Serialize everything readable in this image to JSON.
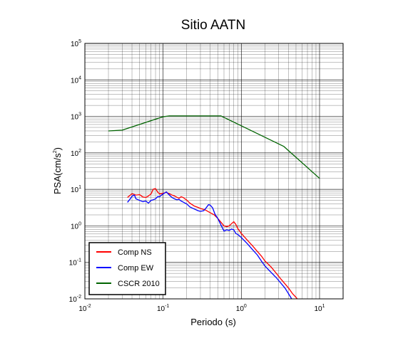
{
  "chart_data": {
    "type": "line",
    "title": "Sitio AATN",
    "xlabel": "Periodo (s)",
    "ylabel": {
      "base": "PSA(cm/s",
      "sup": "2",
      "end": ")"
    },
    "x_scale": "log",
    "y_scale": "log",
    "xlim": [
      0.01,
      20
    ],
    "ylim": [
      0.01,
      100000
    ],
    "grid": true,
    "legend_position": "bottom-left",
    "x_ticks": [
      {
        "base": "10",
        "exp": "-2",
        "value": 0.01
      },
      {
        "base": "10",
        "exp": "-1",
        "value": 0.1
      },
      {
        "base": "10",
        "exp": "0",
        "value": 1
      },
      {
        "base": "10",
        "exp": "1",
        "value": 10
      }
    ],
    "y_ticks": [
      {
        "base": "10",
        "exp": "-2",
        "value": 0.01
      },
      {
        "base": "10",
        "exp": "-1",
        "value": 0.1
      },
      {
        "base": "10",
        "exp": "0",
        "value": 1
      },
      {
        "base": "10",
        "exp": "1",
        "value": 10
      },
      {
        "base": "10",
        "exp": "2",
        "value": 100
      },
      {
        "base": "10",
        "exp": "3",
        "value": 1000
      },
      {
        "base": "10",
        "exp": "4",
        "value": 10000
      },
      {
        "base": "10",
        "exp": "5",
        "value": 100000
      }
    ],
    "series": [
      {
        "name": "Comp NS",
        "color": "#ff0000",
        "points": [
          [
            0.035,
            6.0
          ],
          [
            0.04,
            7.6
          ],
          [
            0.045,
            7.0
          ],
          [
            0.05,
            7.2
          ],
          [
            0.055,
            6.2
          ],
          [
            0.06,
            6.0
          ],
          [
            0.065,
            6.6
          ],
          [
            0.07,
            7.5
          ],
          [
            0.075,
            10.2
          ],
          [
            0.08,
            10.5
          ],
          [
            0.085,
            8.5
          ],
          [
            0.09,
            7.5
          ],
          [
            0.1,
            7.8
          ],
          [
            0.11,
            8.3
          ],
          [
            0.12,
            7.6
          ],
          [
            0.13,
            7.0
          ],
          [
            0.14,
            6.6
          ],
          [
            0.15,
            6.1
          ],
          [
            0.16,
            5.7
          ],
          [
            0.17,
            6.3
          ],
          [
            0.18,
            6.0
          ],
          [
            0.2,
            5.1
          ],
          [
            0.22,
            4.2
          ],
          [
            0.25,
            3.5
          ],
          [
            0.28,
            3.2
          ],
          [
            0.3,
            3.0
          ],
          [
            0.35,
            2.7
          ],
          [
            0.4,
            2.3
          ],
          [
            0.45,
            2.0
          ],
          [
            0.5,
            1.6
          ],
          [
            0.55,
            1.25
          ],
          [
            0.6,
            1.0
          ],
          [
            0.65,
            0.95
          ],
          [
            0.7,
            1.0
          ],
          [
            0.75,
            1.15
          ],
          [
            0.8,
            1.3
          ],
          [
            0.85,
            1.1
          ],
          [
            0.9,
            0.85
          ],
          [
            1.0,
            0.62
          ],
          [
            1.2,
            0.4
          ],
          [
            1.4,
            0.28
          ],
          [
            1.6,
            0.2
          ],
          [
            1.8,
            0.15
          ],
          [
            2.0,
            0.11
          ],
          [
            2.4,
            0.075
          ],
          [
            2.8,
            0.05
          ],
          [
            3.2,
            0.035
          ],
          [
            3.6,
            0.026
          ],
          [
            4.0,
            0.02
          ],
          [
            4.5,
            0.014
          ],
          [
            5.0,
            0.011
          ],
          [
            5.2,
            0.01
          ]
        ]
      },
      {
        "name": "Comp EW",
        "color": "#0000ff",
        "points": [
          [
            0.035,
            4.4
          ],
          [
            0.038,
            5.5
          ],
          [
            0.04,
            6.5
          ],
          [
            0.043,
            7.0
          ],
          [
            0.045,
            5.5
          ],
          [
            0.05,
            5.0
          ],
          [
            0.055,
            4.6
          ],
          [
            0.06,
            4.8
          ],
          [
            0.065,
            4.2
          ],
          [
            0.07,
            5.0
          ],
          [
            0.075,
            5.2
          ],
          [
            0.08,
            5.5
          ],
          [
            0.085,
            6.3
          ],
          [
            0.09,
            6.3
          ],
          [
            0.1,
            7.5
          ],
          [
            0.11,
            8.5
          ],
          [
            0.12,
            7.0
          ],
          [
            0.13,
            6.0
          ],
          [
            0.14,
            5.5
          ],
          [
            0.15,
            5.2
          ],
          [
            0.16,
            5.3
          ],
          [
            0.17,
            4.8
          ],
          [
            0.18,
            4.5
          ],
          [
            0.2,
            4.0
          ],
          [
            0.22,
            3.3
          ],
          [
            0.25,
            2.9
          ],
          [
            0.28,
            2.6
          ],
          [
            0.3,
            2.5
          ],
          [
            0.33,
            2.6
          ],
          [
            0.35,
            3.0
          ],
          [
            0.38,
            3.8
          ],
          [
            0.4,
            3.7
          ],
          [
            0.43,
            3.1
          ],
          [
            0.46,
            2.1
          ],
          [
            0.5,
            1.6
          ],
          [
            0.55,
            1.05
          ],
          [
            0.6,
            0.72
          ],
          [
            0.65,
            0.78
          ],
          [
            0.7,
            0.75
          ],
          [
            0.75,
            0.82
          ],
          [
            0.8,
            0.78
          ],
          [
            0.85,
            0.62
          ],
          [
            0.9,
            0.58
          ],
          [
            1.0,
            0.48
          ],
          [
            1.2,
            0.32
          ],
          [
            1.4,
            0.22
          ],
          [
            1.6,
            0.16
          ],
          [
            1.8,
            0.11
          ],
          [
            2.0,
            0.08
          ],
          [
            2.4,
            0.053
          ],
          [
            2.8,
            0.038
          ],
          [
            3.2,
            0.027
          ],
          [
            3.6,
            0.02
          ],
          [
            4.0,
            0.014
          ],
          [
            4.4,
            0.01
          ]
        ]
      },
      {
        "name": "CSCR 2010",
        "color": "#006400",
        "points": [
          [
            0.02,
            400
          ],
          [
            0.03,
            420
          ],
          [
            0.1,
            980
          ],
          [
            0.12,
            1030
          ],
          [
            0.55,
            1030
          ],
          [
            3.5,
            150
          ],
          [
            10,
            20
          ]
        ]
      }
    ]
  }
}
